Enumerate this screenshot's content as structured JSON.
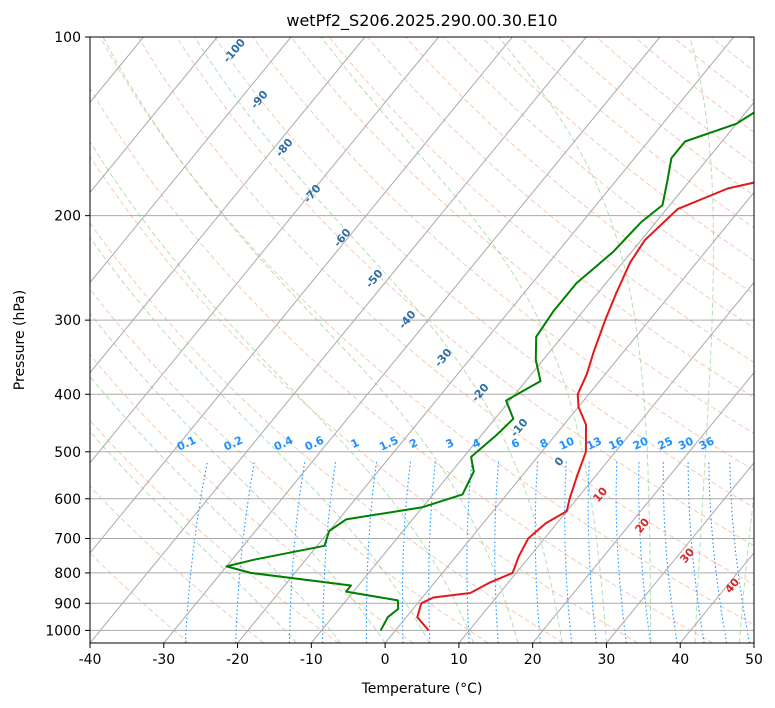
{
  "chart_data": {
    "type": "line",
    "title": "wetPf2_S206.2025.290.00.30.E10",
    "xlabel": "Temperature (°C)",
    "ylabel": "Pressure (hPa)",
    "xlim": [
      -40,
      50
    ],
    "ylim": [
      1050,
      100
    ],
    "y_scale": "log",
    "grid": true,
    "x_ticks": [
      "-40",
      "-30",
      "-20",
      "-10",
      "0",
      "10",
      "20",
      "30",
      "40",
      "50"
    ],
    "y_ticks": [
      "1000",
      "900",
      "800",
      "700",
      "600",
      "500",
      "400",
      "300",
      "200",
      "100"
    ],
    "series": [
      {
        "color": "#e31a1c",
        "x_data": "temperature",
        "points": [
          [
            4.5,
            1000
          ],
          [
            1.5,
            950
          ],
          [
            0.5,
            900
          ],
          [
            1.5,
            880
          ],
          [
            6,
            865
          ],
          [
            7.5,
            830
          ],
          [
            9.5,
            800
          ],
          [
            8.5,
            750
          ],
          [
            7.8,
            700
          ],
          [
            8.5,
            660
          ],
          [
            10,
            630
          ],
          [
            9,
            600
          ],
          [
            7.5,
            550
          ],
          [
            6,
            500
          ],
          [
            3,
            450
          ],
          [
            0,
            420
          ],
          [
            -1.5,
            400
          ],
          [
            -2.5,
            370
          ],
          [
            -4,
            340
          ],
          [
            -6,
            300
          ],
          [
            -7.5,
            270
          ],
          [
            -9,
            240
          ],
          [
            -9.5,
            220
          ],
          [
            -8.5,
            195
          ],
          [
            -4,
            180
          ],
          [
            1,
            173
          ],
          [
            5,
            165
          ],
          [
            8,
            155
          ],
          [
            10,
            145
          ],
          [
            12,
            135
          ],
          [
            15,
            125
          ],
          [
            19,
            115
          ],
          [
            22,
            105
          ],
          [
            24,
            100
          ]
        ]
      },
      {
        "color": "#008000",
        "x_data": "dewpoint",
        "points": [
          [
            -2,
            1000
          ],
          [
            -2.5,
            950
          ],
          [
            -2,
            920
          ],
          [
            -3,
            890
          ],
          [
            -11,
            860
          ],
          [
            -11,
            840
          ],
          [
            -26,
            800
          ],
          [
            -30,
            780
          ],
          [
            -27,
            760
          ],
          [
            -19,
            720
          ],
          [
            -20,
            680
          ],
          [
            -19,
            650
          ],
          [
            -10,
            620
          ],
          [
            -6,
            590
          ],
          [
            -7,
            540
          ],
          [
            -9,
            510
          ],
          [
            -8,
            470
          ],
          [
            -7.5,
            440
          ],
          [
            -10.5,
            410
          ],
          [
            -8,
            380
          ],
          [
            -11,
            350
          ],
          [
            -13.5,
            320
          ],
          [
            -14,
            290
          ],
          [
            -14,
            260
          ],
          [
            -12.5,
            230
          ],
          [
            -12,
            205
          ],
          [
            -11,
            192
          ],
          [
            -13,
            175
          ],
          [
            -15,
            160
          ],
          [
            -15,
            150
          ],
          [
            -10,
            140
          ],
          [
            -7,
            125
          ],
          [
            -4,
            112
          ],
          [
            -1,
            105
          ],
          [
            0,
            100
          ]
        ]
      }
    ],
    "mixing_ratio_labels": [
      "0.1",
      "0.2",
      "0.4",
      "0.6",
      "1",
      "1.5",
      "2",
      "3",
      "4",
      "6",
      "8",
      "10",
      "13",
      "16",
      "20",
      "25",
      "30",
      "36"
    ],
    "dry_adiabat_labels": [
      "-100",
      "-90",
      "-80",
      "-70",
      "-60",
      "-50",
      "-40",
      "-30",
      "-20",
      "-10",
      "0"
    ],
    "moist_adiabat_labels": [
      "10",
      "20",
      "30",
      "40"
    ],
    "colors": {
      "temperature": "#e31a1c",
      "dewpoint": "#008000",
      "isotherm": "#aaaaaa",
      "dry_adiabat": "#f4a582",
      "moist_adiabat": "#74c476",
      "mixing_ratio": "#1e90ff",
      "dry_adiabat_text": "#2e6fa7",
      "moist_adiabat_text": "#d62728"
    }
  }
}
